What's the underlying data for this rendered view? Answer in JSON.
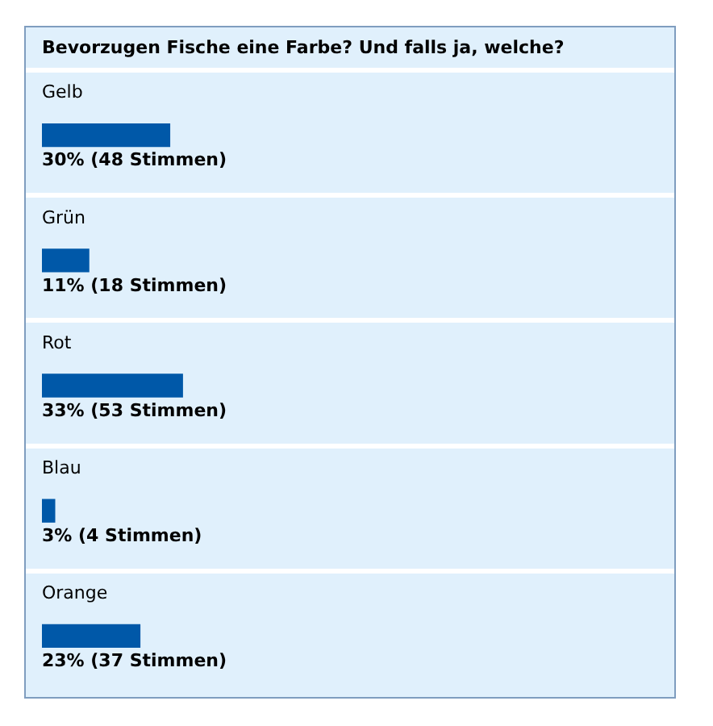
{
  "chart_data": {
    "type": "bar",
    "orientation": "horizontal",
    "title": "Bevorzugen Fische eine Farbe? Und falls ja, welche?",
    "categories": [
      "Gelb",
      "Grün",
      "Rot",
      "Blau",
      "Orange"
    ],
    "values": [
      30,
      11,
      33,
      3,
      23
    ],
    "color": "#0058a8",
    "value_labels": [
      "30% (48 Stimmen)",
      "11% (18 Stimmen)",
      "33% (53 Stimmen)",
      "3% (4 Stimmen)",
      "23% (37 Stimmen)"
    ]
  }
}
